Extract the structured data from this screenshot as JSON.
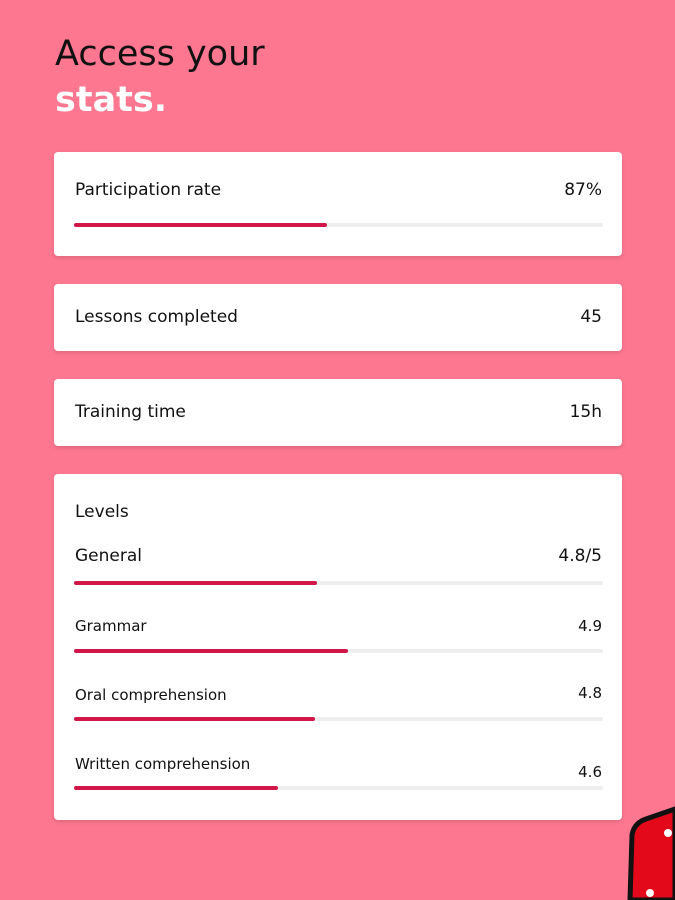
{
  "header": {
    "title_line1": "Access your",
    "title_line2": "stats."
  },
  "stats": [
    {
      "label": "Participation rate",
      "value": "87%"
    },
    {
      "label": "Lessons completed",
      "value": "45"
    },
    {
      "label": "Training time",
      "value": "15h"
    }
  ],
  "levels": {
    "title": "Levels",
    "items": [
      {
        "label": "General",
        "value": "4.8/5"
      },
      {
        "label": "Grammar",
        "value": "4.9"
      },
      {
        "label": "Oral comprehension",
        "value": "4.8"
      },
      {
        "label": "Written comprehension",
        "value": "4.6"
      }
    ]
  }
}
